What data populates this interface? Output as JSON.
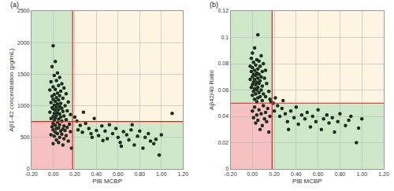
{
  "chart_data": [
    {
      "type": "scatter",
      "title": "(a)",
      "x_label": "PiB MCBP",
      "y_label": "Aβ1-42 concentration (pg/mL)",
      "color": "#1e2e1e",
      "marker": "circle",
      "grid": true,
      "xlim": [
        -0.2,
        1.2
      ],
      "xticks": [
        {
          "value": -0.2,
          "label": "-0.20"
        },
        {
          "value": 0,
          "label": "0.00"
        },
        {
          "value": 0.2,
          "label": "0.20"
        },
        {
          "value": 0.4,
          "label": "0.40"
        },
        {
          "value": 0.6,
          "label": "0.60"
        },
        {
          "value": 0.8,
          "label": "0.80"
        },
        {
          "value": 1,
          "label": "1.00"
        },
        {
          "value": 1.2,
          "label": "1.20"
        }
      ],
      "ylim": [
        0,
        2500
      ],
      "yticks": [
        0,
        500,
        1000,
        1500,
        2000,
        2500
      ],
      "thresholds": {
        "x": 0.18,
        "y": 750,
        "color": "#e02020"
      },
      "regions": {
        "upper_left": "#cfe8c9",
        "upper_right": "#fdf5e2",
        "lower_left": "#f6c1c1",
        "lower_right": "#cfe8c9"
      },
      "x": [
        0.0,
        0.02,
        -0.01,
        0.04,
        0.01,
        0.06,
        0.03,
        -0.02,
        0.08,
        0.05,
        0,
        0.1,
        0.02,
        -0.03,
        0.07,
        0.04,
        0.12,
        0.01,
        0.06,
        -0.01,
        0.03,
        0.09,
        0,
        0.05,
        0.02,
        0.14,
        -0.02,
        0.07,
        0.04,
        0.01,
        0.11,
        0.06,
        0.03,
        -0.01,
        0.08,
        0,
        0.05,
        0.02,
        0.13,
        0.09,
        -0.03,
        0.04,
        0.01,
        0.06,
        0.16,
        0.03,
        0.1,
        0,
        0.07,
        0.02,
        -0.02,
        0.05,
        0.12,
        0.01,
        0.08,
        0.04,
        0,
        0.15,
        0.06,
        0.02,
        0.1,
        -0.01,
        0.13,
        0.05,
        0.03,
        0.09,
        0,
        0.11,
        0.07,
        0.16,
        0.02,
        0.04,
        0.08,
        -0.02,
        0.12,
        0.01,
        0.06,
        0.1,
        0.03,
        0.14,
        0.05,
        0,
        0.09,
        0.17,
        0.2,
        0.22,
        0.25,
        0.27,
        0.3,
        0.33,
        0.35,
        0.38,
        0.4,
        0.42,
        0.45,
        0.48,
        0.5,
        0.52,
        0.55,
        0.58,
        0.6,
        0.62,
        0.65,
        0.68,
        0.7,
        0.72,
        0.75,
        0.78,
        0.8,
        0.83,
        0.85,
        0.88,
        0.9,
        0.93,
        0.95,
        0.98,
        1.0,
        1.1,
        0.23,
        0.28,
        0.36,
        0.46,
        0.63,
        0.73
      ],
      "values": [
        1950,
        1700,
        1620,
        1520,
        1480,
        1450,
        1400,
        1380,
        1350,
        1320,
        1300,
        1280,
        1260,
        1250,
        1230,
        1200,
        1190,
        1180,
        1160,
        1150,
        1130,
        1120,
        1100,
        1090,
        1070,
        1060,
        1050,
        1040,
        1030,
        1010,
        1000,
        990,
        980,
        970,
        960,
        950,
        940,
        930,
        920,
        910,
        900,
        890,
        880,
        870,
        860,
        850,
        840,
        830,
        820,
        810,
        800,
        790,
        780,
        770,
        760,
        740,
        720,
        710,
        700,
        690,
        680,
        670,
        660,
        650,
        640,
        630,
        620,
        610,
        600,
        590,
        580,
        560,
        550,
        540,
        530,
        520,
        500,
        480,
        460,
        440,
        420,
        400,
        380,
        330,
        820,
        760,
        690,
        580,
        720,
        640,
        560,
        800,
        610,
        530,
        680,
        600,
        480,
        700,
        560,
        640,
        500,
        420,
        590,
        540,
        460,
        620,
        380,
        520,
        600,
        330,
        500,
        560,
        440,
        400,
        470,
        220,
        540,
        880,
        620,
        900,
        500,
        450,
        360,
        700
      ]
    },
    {
      "type": "scatter",
      "title": "(b)",
      "x_label": "PiB MCBP",
      "y_label": "Aβ42/40 Ratio",
      "color": "#1e2e1e",
      "marker": "circle",
      "grid": true,
      "xlim": [
        -0.2,
        1.2
      ],
      "xticks": [
        {
          "value": -0.2,
          "label": "-0.20"
        },
        {
          "value": 0,
          "label": "0.00"
        },
        {
          "value": 0.2,
          "label": "0.20"
        },
        {
          "value": 0.4,
          "label": "0.40"
        },
        {
          "value": 0.6,
          "label": "0.60"
        },
        {
          "value": 0.8,
          "label": "0.80"
        },
        {
          "value": 1,
          "label": "1.00"
        },
        {
          "value": 1.2,
          "label": "1.20"
        }
      ],
      "ylim": [
        0,
        0.12
      ],
      "yticks": [
        0,
        0.02,
        0.04,
        0.06,
        0.08,
        0.1,
        0.12
      ],
      "thresholds": {
        "x": 0.18,
        "y": 0.05,
        "color": "#e02020"
      },
      "regions": {
        "upper_left": "#cfe8c9",
        "upper_right": "#fdf5e2",
        "lower_left": "#f6c1c1",
        "lower_right": "#cfe8c9"
      },
      "x": [
        0.05,
        0.02,
        0,
        0.08,
        -0.01,
        0.04,
        0.06,
        0.01,
        0.1,
        0.03,
        -0.02,
        0.07,
        0,
        0.05,
        0.12,
        0.02,
        0.09,
        -0.01,
        0.04,
        0.06,
        0.01,
        0.03,
        0.08,
        0,
        0.11,
        0.05,
        -0.02,
        0.02,
        0.07,
        0.04,
        0.01,
        0.13,
        0.06,
        0.03,
        0,
        0.09,
        0.05,
        -0.01,
        0.02,
        0.08,
        0.04,
        0.15,
        0.01,
        0.06,
        0.1,
        0.03,
        0,
        0.07,
        0.12,
        0.05,
        0.02,
        0.16,
        0.09,
        0.04,
        0.17,
        0.1,
        0.02,
        0.14,
        0.06,
        0,
        0.12,
        0.08,
        0.04,
        0.16,
        0.01,
        0.11,
        0.05,
        0.13,
        0.03,
        0.09,
        0.07,
        0.15,
        0.19,
        0.21,
        0.2,
        0.23,
        0.25,
        0.27,
        0.3,
        0.32,
        0.35,
        0.38,
        0.4,
        0.42,
        0.45,
        0.48,
        0.5,
        0.53,
        0.55,
        0.58,
        0.6,
        0.63,
        0.65,
        0.68,
        0.7,
        0.73,
        0.75,
        0.78,
        0.8,
        0.85,
        0.88,
        0.9,
        0.95,
        0.97,
        1.0,
        0.28,
        0.33
      ],
      "values": [
        0.102,
        0.092,
        0.088,
        0.086,
        0.084,
        0.083,
        0.082,
        0.081,
        0.08,
        0.079,
        0.078,
        0.078,
        0.077,
        0.076,
        0.075,
        0.075,
        0.074,
        0.074,
        0.073,
        0.072,
        0.072,
        0.071,
        0.07,
        0.07,
        0.069,
        0.069,
        0.068,
        0.068,
        0.067,
        0.066,
        0.066,
        0.065,
        0.065,
        0.064,
        0.064,
        0.063,
        0.062,
        0.062,
        0.061,
        0.06,
        0.06,
        0.059,
        0.059,
        0.058,
        0.057,
        0.057,
        0.056,
        0.055,
        0.055,
        0.054,
        0.053,
        0.053,
        0.052,
        0.051,
        0.051,
        0.048,
        0.047,
        0.046,
        0.045,
        0.044,
        0.043,
        0.042,
        0.041,
        0.04,
        0.039,
        0.038,
        0.037,
        0.036,
        0.035,
        0.033,
        0.03,
        0.028,
        0.05,
        0.054,
        0.044,
        0.048,
        0.04,
        0.046,
        0.042,
        0.036,
        0.044,
        0.039,
        0.047,
        0.034,
        0.041,
        0.038,
        0.043,
        0.032,
        0.04,
        0.036,
        0.045,
        0.03,
        0.038,
        0.041,
        0.035,
        0.039,
        0.028,
        0.036,
        0.042,
        0.033,
        0.037,
        0.04,
        0.02,
        0.031,
        0.038,
        0.052,
        0.03
      ]
    }
  ]
}
